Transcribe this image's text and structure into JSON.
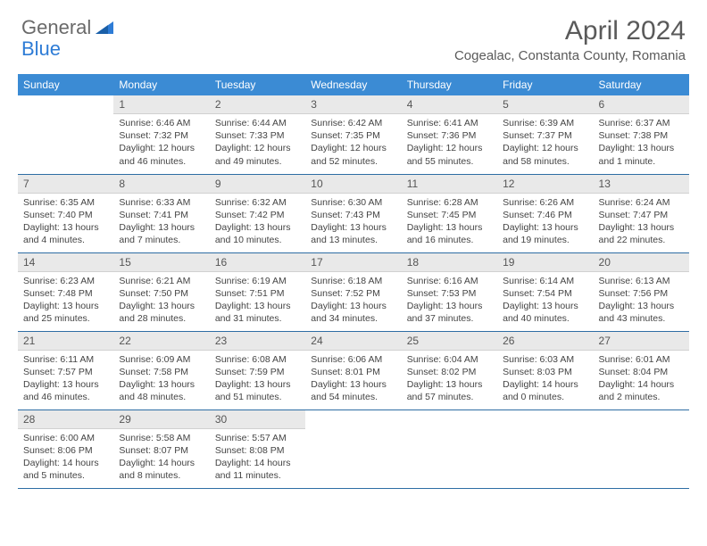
{
  "logo": {
    "general": "General",
    "blue": "Blue"
  },
  "title": "April 2024",
  "location": "Cogealac, Constanta County, Romania",
  "colors": {
    "header_bg": "#3b8bd4",
    "header_text": "#ffffff",
    "daynum_bg": "#e9e9e9",
    "border": "#2e6da4",
    "logo_gray": "#6a6a6a",
    "logo_blue": "#2e7cd6"
  },
  "days_of_week": [
    "Sunday",
    "Monday",
    "Tuesday",
    "Wednesday",
    "Thursday",
    "Friday",
    "Saturday"
  ],
  "weeks": [
    [
      {
        "num": "",
        "lines": []
      },
      {
        "num": "1",
        "lines": [
          "Sunrise: 6:46 AM",
          "Sunset: 7:32 PM",
          "Daylight: 12 hours",
          "and 46 minutes."
        ]
      },
      {
        "num": "2",
        "lines": [
          "Sunrise: 6:44 AM",
          "Sunset: 7:33 PM",
          "Daylight: 12 hours",
          "and 49 minutes."
        ]
      },
      {
        "num": "3",
        "lines": [
          "Sunrise: 6:42 AM",
          "Sunset: 7:35 PM",
          "Daylight: 12 hours",
          "and 52 minutes."
        ]
      },
      {
        "num": "4",
        "lines": [
          "Sunrise: 6:41 AM",
          "Sunset: 7:36 PM",
          "Daylight: 12 hours",
          "and 55 minutes."
        ]
      },
      {
        "num": "5",
        "lines": [
          "Sunrise: 6:39 AM",
          "Sunset: 7:37 PM",
          "Daylight: 12 hours",
          "and 58 minutes."
        ]
      },
      {
        "num": "6",
        "lines": [
          "Sunrise: 6:37 AM",
          "Sunset: 7:38 PM",
          "Daylight: 13 hours",
          "and 1 minute."
        ]
      }
    ],
    [
      {
        "num": "7",
        "lines": [
          "Sunrise: 6:35 AM",
          "Sunset: 7:40 PM",
          "Daylight: 13 hours",
          "and 4 minutes."
        ]
      },
      {
        "num": "8",
        "lines": [
          "Sunrise: 6:33 AM",
          "Sunset: 7:41 PM",
          "Daylight: 13 hours",
          "and 7 minutes."
        ]
      },
      {
        "num": "9",
        "lines": [
          "Sunrise: 6:32 AM",
          "Sunset: 7:42 PM",
          "Daylight: 13 hours",
          "and 10 minutes."
        ]
      },
      {
        "num": "10",
        "lines": [
          "Sunrise: 6:30 AM",
          "Sunset: 7:43 PM",
          "Daylight: 13 hours",
          "and 13 minutes."
        ]
      },
      {
        "num": "11",
        "lines": [
          "Sunrise: 6:28 AM",
          "Sunset: 7:45 PM",
          "Daylight: 13 hours",
          "and 16 minutes."
        ]
      },
      {
        "num": "12",
        "lines": [
          "Sunrise: 6:26 AM",
          "Sunset: 7:46 PM",
          "Daylight: 13 hours",
          "and 19 minutes."
        ]
      },
      {
        "num": "13",
        "lines": [
          "Sunrise: 6:24 AM",
          "Sunset: 7:47 PM",
          "Daylight: 13 hours",
          "and 22 minutes."
        ]
      }
    ],
    [
      {
        "num": "14",
        "lines": [
          "Sunrise: 6:23 AM",
          "Sunset: 7:48 PM",
          "Daylight: 13 hours",
          "and 25 minutes."
        ]
      },
      {
        "num": "15",
        "lines": [
          "Sunrise: 6:21 AM",
          "Sunset: 7:50 PM",
          "Daylight: 13 hours",
          "and 28 minutes."
        ]
      },
      {
        "num": "16",
        "lines": [
          "Sunrise: 6:19 AM",
          "Sunset: 7:51 PM",
          "Daylight: 13 hours",
          "and 31 minutes."
        ]
      },
      {
        "num": "17",
        "lines": [
          "Sunrise: 6:18 AM",
          "Sunset: 7:52 PM",
          "Daylight: 13 hours",
          "and 34 minutes."
        ]
      },
      {
        "num": "18",
        "lines": [
          "Sunrise: 6:16 AM",
          "Sunset: 7:53 PM",
          "Daylight: 13 hours",
          "and 37 minutes."
        ]
      },
      {
        "num": "19",
        "lines": [
          "Sunrise: 6:14 AM",
          "Sunset: 7:54 PM",
          "Daylight: 13 hours",
          "and 40 minutes."
        ]
      },
      {
        "num": "20",
        "lines": [
          "Sunrise: 6:13 AM",
          "Sunset: 7:56 PM",
          "Daylight: 13 hours",
          "and 43 minutes."
        ]
      }
    ],
    [
      {
        "num": "21",
        "lines": [
          "Sunrise: 6:11 AM",
          "Sunset: 7:57 PM",
          "Daylight: 13 hours",
          "and 46 minutes."
        ]
      },
      {
        "num": "22",
        "lines": [
          "Sunrise: 6:09 AM",
          "Sunset: 7:58 PM",
          "Daylight: 13 hours",
          "and 48 minutes."
        ]
      },
      {
        "num": "23",
        "lines": [
          "Sunrise: 6:08 AM",
          "Sunset: 7:59 PM",
          "Daylight: 13 hours",
          "and 51 minutes."
        ]
      },
      {
        "num": "24",
        "lines": [
          "Sunrise: 6:06 AM",
          "Sunset: 8:01 PM",
          "Daylight: 13 hours",
          "and 54 minutes."
        ]
      },
      {
        "num": "25",
        "lines": [
          "Sunrise: 6:04 AM",
          "Sunset: 8:02 PM",
          "Daylight: 13 hours",
          "and 57 minutes."
        ]
      },
      {
        "num": "26",
        "lines": [
          "Sunrise: 6:03 AM",
          "Sunset: 8:03 PM",
          "Daylight: 14 hours",
          "and 0 minutes."
        ]
      },
      {
        "num": "27",
        "lines": [
          "Sunrise: 6:01 AM",
          "Sunset: 8:04 PM",
          "Daylight: 14 hours",
          "and 2 minutes."
        ]
      }
    ],
    [
      {
        "num": "28",
        "lines": [
          "Sunrise: 6:00 AM",
          "Sunset: 8:06 PM",
          "Daylight: 14 hours",
          "and 5 minutes."
        ]
      },
      {
        "num": "29",
        "lines": [
          "Sunrise: 5:58 AM",
          "Sunset: 8:07 PM",
          "Daylight: 14 hours",
          "and 8 minutes."
        ]
      },
      {
        "num": "30",
        "lines": [
          "Sunrise: 5:57 AM",
          "Sunset: 8:08 PM",
          "Daylight: 14 hours",
          "and 11 minutes."
        ]
      },
      {
        "num": "",
        "lines": []
      },
      {
        "num": "",
        "lines": []
      },
      {
        "num": "",
        "lines": []
      },
      {
        "num": "",
        "lines": []
      }
    ]
  ]
}
